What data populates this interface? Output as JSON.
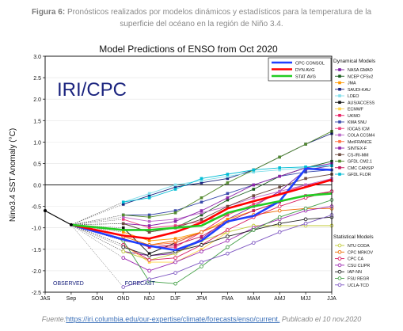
{
  "caption": {
    "figure_label": "Figura 6:",
    "line1": "Pronósticos realizados por modelos dinámicos y estadísticos para la temperatura de la",
    "line2": "superficie del océano en la región de Niño 3.4."
  },
  "source": {
    "prefix": "Fuente:",
    "link_text": "https://iri.columbia.edu/our-expertise/climate/forecasts/enso/current.",
    "suffix": " Publicado el 10 nov.2020"
  },
  "chart_data": {
    "type": "line",
    "title": "Model Predictions of ENSO from Oct 2020",
    "watermark": "IRI/CPC",
    "ylabel": "Nino3.4 SST Anomaly (°C)",
    "ylim": [
      -2.5,
      3.0
    ],
    "yticks": [
      "3.0",
      "2.5",
      "2.0",
      "1.5",
      "1.0",
      "0.5",
      "0.0",
      "-0.5",
      "-1.0",
      "-1.5",
      "-2.0",
      "-2.5"
    ],
    "categories": [
      "JAS",
      "Sep",
      "SON",
      "OND",
      "NDJ",
      "DJF",
      "JFM",
      "FMA",
      "MAM",
      "AMJ",
      "MJJ",
      "JJA"
    ],
    "observed_label": "OBSERVED",
    "forecast_label": "FORECAST",
    "observed": {
      "x": [
        0,
        1
      ],
      "values": [
        -0.6,
        -0.93
      ]
    },
    "bold_series": [
      {
        "name": "CPC CONSOL",
        "color": "#1f3fff",
        "values": [
          -1.27,
          -1.42,
          -1.52,
          -1.3,
          -0.85,
          -0.72,
          -0.38,
          0.38,
          0.35
        ]
      },
      {
        "name": "DYN AVG",
        "color": "#ff0000",
        "values": [
          -1.18,
          -1.25,
          -1.1,
          -0.88,
          -0.55,
          -0.38,
          -0.22,
          -0.05,
          0.12
        ]
      },
      {
        "name": "STAT AVG",
        "color": "#22cc22",
        "values": [
          -1.05,
          -1.05,
          -1.0,
          -0.95,
          -0.65,
          -0.5,
          -0.38,
          -0.25,
          -0.2
        ]
      }
    ],
    "legend_groups": {
      "dynamical": "Dynamical Models",
      "statistical": "Statistical Models"
    },
    "dynamical_models": [
      {
        "name": "NASA GMAO",
        "color": "#7b1fa2",
        "values": [
          -1.55,
          -1.65,
          -1.6,
          -1.25,
          -0.8,
          -0.5,
          -0.15,
          0.35,
          0.45
        ]
      },
      {
        "name": "NCEP CFSv2",
        "color": "#1b5e20",
        "values": [
          -0.9,
          -1.1,
          -1.0,
          -0.7,
          -0.35,
          -0.1,
          0.2,
          0.4,
          0.55
        ]
      },
      {
        "name": "JMA",
        "color": "#ff9800",
        "values": [
          -1.1,
          -1.3,
          -1.25,
          -1.1,
          -0.8,
          -0.6,
          -0.4,
          null,
          null
        ]
      },
      {
        "name": "SAUDI-KAU",
        "color": "#1a237e",
        "values": [
          -0.45,
          -0.25,
          -0.05,
          0.05,
          0.15,
          0.35,
          0.65,
          0.95,
          1.2
        ]
      },
      {
        "name": "LDEO",
        "color": "#80deea",
        "values": [
          -0.4,
          -0.2,
          0.0,
          0.1,
          0.2,
          0.3,
          0.35,
          0.4,
          0.45
        ]
      },
      {
        "name": "AUS/ACCESS",
        "color": "#111111",
        "values": [
          -1.0,
          -1.6,
          -1.35,
          -1.1,
          null,
          null,
          null,
          null,
          null
        ]
      },
      {
        "name": "ECMWF",
        "color": "#ffd54f",
        "values": [
          -1.4,
          -1.8,
          -1.8,
          -1.5,
          -1.1,
          null,
          null,
          null,
          null
        ]
      },
      {
        "name": "UKMO",
        "color": "#e91e63",
        "values": [
          -1.25,
          -1.45,
          -1.45,
          -1.1,
          -0.7,
          null,
          null,
          null,
          null
        ]
      },
      {
        "name": "KMA SNU",
        "color": "#3949ab",
        "values": [
          -0.7,
          -0.7,
          -0.6,
          -0.4,
          -0.2,
          0.0,
          0.2,
          0.3,
          0.35
        ]
      },
      {
        "name": "IOCAS ICM",
        "color": "#ec407a",
        "values": [
          -0.8,
          -1.0,
          -0.95,
          -0.85,
          -0.7,
          -0.45,
          -0.2,
          0.0,
          0.1
        ]
      },
      {
        "name": "COLA CCSM4",
        "color": "#ba68c8",
        "values": [
          -0.75,
          -0.85,
          -0.8,
          -0.65,
          -0.5,
          -0.3,
          -0.15,
          0.0,
          0.15
        ]
      },
      {
        "name": "MetFRANCE",
        "color": "#ff7043",
        "values": [
          -1.3,
          -1.4,
          -1.35,
          -1.1,
          null,
          null,
          null,
          null,
          null
        ]
      },
      {
        "name": "SINTEX-F",
        "color": "#8e24aa",
        "values": [
          -0.9,
          -0.95,
          -0.85,
          -0.6,
          -0.3,
          0.0,
          0.2,
          0.4,
          0.5
        ]
      },
      {
        "name": "CS-IRI-MM",
        "color": "#6d4c41",
        "values": [
          -0.9,
          -1.1,
          -1.0,
          -0.8,
          -0.5,
          -0.25,
          -0.05,
          0.15,
          0.25
        ]
      },
      {
        "name": "GFDL CM2.1",
        "color": "#558b2f",
        "values": [
          -0.7,
          -0.75,
          -0.65,
          -0.3,
          0.05,
          0.35,
          0.65,
          0.95,
          1.25
        ]
      },
      {
        "name": "CMC CANSIP",
        "color": "#c2185b",
        "values": [
          -1.25,
          -1.45,
          -1.4,
          -1.2,
          -0.85,
          -0.6,
          -0.4,
          -0.25,
          -0.15
        ]
      },
      {
        "name": "GFDL FLOR",
        "color": "#00bcd4",
        "values": [
          -0.4,
          -0.3,
          -0.1,
          0.15,
          0.25,
          0.35,
          0.4,
          0.42,
          0.45
        ]
      }
    ],
    "statistical_models": [
      {
        "name": "NTU CODA",
        "color": "#c0ca33",
        "values": [
          -1.55,
          -1.75,
          -1.6,
          -1.3,
          -1.1,
          -0.95,
          -0.95,
          -0.95,
          -0.95
        ]
      },
      {
        "name": "CPC MRKOV",
        "color": "#ef6c00",
        "values": [
          -1.2,
          -1.4,
          -1.3,
          -1.1,
          -0.85,
          -0.7,
          -0.6,
          -0.55,
          -0.55
        ]
      },
      {
        "name": "CPC CA",
        "color": "#d81b60",
        "values": [
          -1.4,
          -1.75,
          -1.7,
          -1.4,
          -1.05,
          -0.75,
          -0.5,
          -0.3,
          -0.15
        ]
      },
      {
        "name": "CSU CLIPR",
        "color": "#9c27b0",
        "values": [
          -1.7,
          -2.0,
          -1.8,
          -1.55,
          -1.3,
          -1.0,
          -0.8,
          -0.6,
          -0.5
        ]
      },
      {
        "name": "IAP-NN",
        "color": "#212121",
        "values": [
          -1.45,
          -1.65,
          -1.55,
          -1.4,
          -1.2,
          -1.05,
          -0.9,
          -0.8,
          -0.75
        ]
      },
      {
        "name": "FSU REGR",
        "color": "#43a047",
        "values": [
          -1.3,
          -2.25,
          -2.3,
          -1.9,
          -1.45,
          -1.05,
          -0.75,
          -0.55,
          -0.35
        ]
      },
      {
        "name": "UCLA-TCD",
        "color": "#7e57c2",
        "values": [
          -2.38,
          -2.2,
          -2.05,
          -1.8,
          -1.6,
          -1.35,
          -1.1,
          -0.9,
          -0.7
        ]
      }
    ]
  }
}
